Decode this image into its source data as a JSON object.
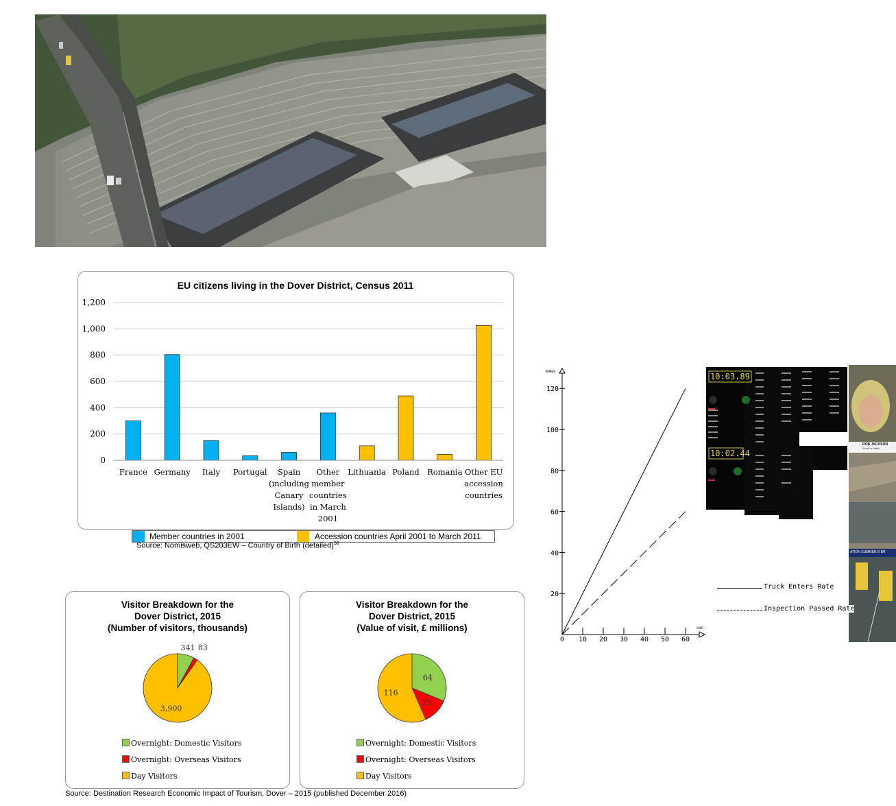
{
  "bar_chart": {
    "source": "Source: Nomisweb, QS203EW – Country of Birth (detailed)",
    "source_superscript": "58",
    "legend": [
      "Member countries in 2001",
      "Accession countries April 2001 to March 2011"
    ]
  },
  "pie_source": "Source: Destination Research Economic Impact of Tourism, Dover – 2015 (published December 2016)",
  "tablet": {
    "time1": "10:03.89",
    "time2": "10:02.44"
  },
  "news": {
    "caption": "ROB JACKSON",
    "subcaption": "Stuck in traffic",
    "ticker": "ATION SUMMER  B  BR"
  },
  "colors": {
    "member": "#00b0f0",
    "accession": "#ffc000",
    "overnight_domestic": "#92d050",
    "overnight_overseas": "#ff0000",
    "day_visitors": "#ffc000"
  },
  "chart_data": [
    {
      "type": "bar",
      "title": "EU citizens living in the Dover District, Census 2011",
      "categories": [
        "France",
        "Germany",
        "Italy",
        "Portugal",
        "Spain (including Canary Islands)",
        "Other member countries in March 2001",
        "Lithuania",
        "Poland",
        "Romania",
        "Other EU accession countries"
      ],
      "category_lines": [
        [
          "France"
        ],
        [
          "Germany"
        ],
        [
          "Italy"
        ],
        [
          "Portugal"
        ],
        [
          "Spain",
          "(including",
          "Canary",
          "Islands)"
        ],
        [
          "Other",
          "member",
          "countries",
          "in March",
          "2001"
        ],
        [
          "Lithuania"
        ],
        [
          "Poland"
        ],
        [
          "Romania"
        ],
        [
          "Other EU",
          "accession",
          "countries"
        ]
      ],
      "values": [
        300,
        805,
        150,
        35,
        60,
        360,
        110,
        490,
        45,
        1025
      ],
      "groups": [
        "member",
        "member",
        "member",
        "member",
        "member",
        "member",
        "accession",
        "accession",
        "accession",
        "accession"
      ],
      "ylim": [
        0,
        1200
      ],
      "yticks": [
        0,
        200,
        400,
        600,
        800,
        1000,
        1200
      ],
      "ytick_labels": [
        "0",
        "200",
        "400",
        "600",
        "800",
        "1,000",
        "1,200"
      ],
      "grid": true,
      "legend_position": "bottom"
    },
    {
      "type": "pie",
      "title": "Visitor Breakdown for the Dover District, 2015 (Number of visitors, thousands)",
      "title_lines": [
        "Visitor Breakdown for the",
        "Dover District, 2015",
        "(Number of visitors, thousands)"
      ],
      "labels": [
        "Overnight: Domestic Visitors",
        "Overnight: Overseas Visitors",
        "Day Visitors"
      ],
      "values": [
        341,
        83,
        3900
      ],
      "value_labels": [
        "341",
        "83",
        "3,900"
      ],
      "legend_position": "bottom"
    },
    {
      "type": "pie",
      "title": "Visitor Breakdown for the Dover District, 2015 (Value of visit, £ millions)",
      "title_lines": [
        "Visitor Breakdown for the",
        "Dover District, 2015",
        "(Value of visit, £ millions)"
      ],
      "labels": [
        "Overnight: Domestic Visitors",
        "Overnight: Overseas Visitors",
        "Day Visitors"
      ],
      "values": [
        64,
        25,
        116
      ],
      "value_labels": [
        "64",
        "25",
        "116"
      ],
      "legend_position": "bottom"
    },
    {
      "type": "line",
      "xlabel": "HOUR",
      "ylabel": "NUMBER",
      "xlim": [
        0,
        70
      ],
      "ylim": [
        0,
        130
      ],
      "xticks": [
        0,
        10,
        20,
        30,
        40,
        50,
        60
      ],
      "yticks": [
        20,
        40,
        60,
        80,
        100,
        120
      ],
      "series": [
        {
          "name": "Truck Enters Rate",
          "style": "solid",
          "x": [
            0,
            60
          ],
          "y": [
            0,
            120
          ]
        },
        {
          "name": "Inspection Passed Rate",
          "style": "dashed",
          "x": [
            0,
            60
          ],
          "y": [
            0,
            60
          ]
        }
      ],
      "legend_position": "right"
    }
  ]
}
